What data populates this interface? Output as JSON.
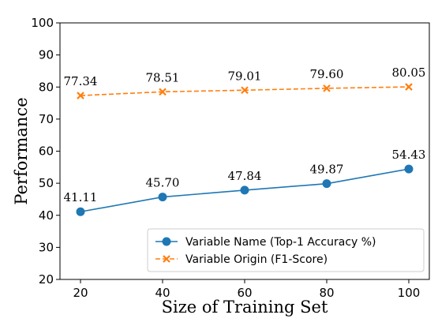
{
  "chart_data": {
    "type": "line",
    "xlabel": "Size of Training Set",
    "ylabel": "Performance",
    "x": [
      20,
      40,
      60,
      80,
      100
    ],
    "xlim": [
      15,
      105
    ],
    "ylim": [
      20,
      100
    ],
    "xticks": [
      "20",
      "40",
      "60",
      "80",
      "100"
    ],
    "yticks": [
      "20",
      "30",
      "40",
      "50",
      "60",
      "70",
      "80",
      "90",
      "100"
    ],
    "grid": false,
    "legend_position": "bottom-right",
    "series": [
      {
        "name": "Variable Name (Top-1 Accuracy %)",
        "values": [
          41.11,
          45.7,
          47.84,
          49.87,
          54.43
        ],
        "labels": [
          "41.11",
          "45.70",
          "47.84",
          "49.87",
          "54.43"
        ],
        "color": "#1f77b4",
        "marker": "circle",
        "line_style": "solid"
      },
      {
        "name": "Variable Origin (F1-Score)",
        "values": [
          77.34,
          78.51,
          79.01,
          79.6,
          80.05
        ],
        "labels": [
          "77.34",
          "78.51",
          "79.01",
          "79.60",
          "80.05"
        ],
        "color": "#ff7f0e",
        "marker": "x",
        "line_style": "dashed"
      }
    ]
  }
}
